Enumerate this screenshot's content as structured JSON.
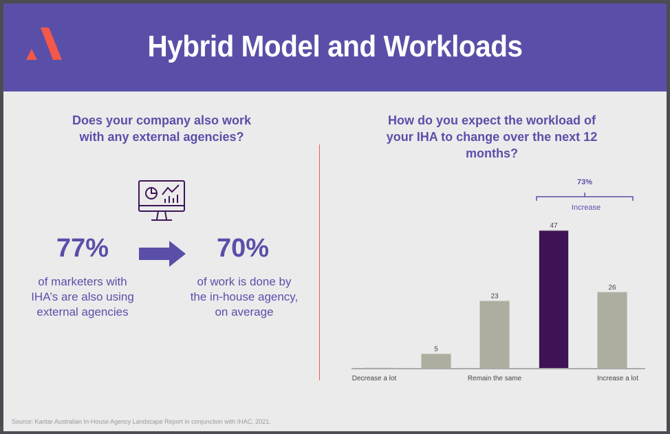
{
  "header": {
    "title": "Hybrid Model and Workloads"
  },
  "left": {
    "question": "Does your company also work with any external agencies?",
    "stat1": {
      "value": "77%",
      "desc": "of marketers with IHA’s are also using external agencies"
    },
    "stat2": {
      "value": "70%",
      "desc": "of work is done by the in-house agency, on average"
    }
  },
  "right": {
    "question": "How do you expect the workload of your IHA to change over the next 12 months?"
  },
  "chart_data": {
    "type": "bar",
    "title": "How do you expect the workload of your IHA to change over the next 12 months?",
    "categories": [
      "Decrease a lot",
      "",
      "Remain the same",
      "",
      "Increase a lot"
    ],
    "values": [
      0,
      5,
      23,
      47,
      26
    ],
    "value_labels": [
      "",
      "5",
      "23",
      "47",
      "26"
    ],
    "highlight_index": 3,
    "colors": {
      "default": "#adada0",
      "highlight": "#3e1356"
    },
    "annotation": {
      "value": "73%",
      "label": "Increase",
      "spans": [
        3,
        4
      ]
    },
    "ylim": [
      0,
      47
    ],
    "grid": false
  },
  "footer": {
    "source": "Source: Kantar Australian In-House Agency Landscape Report in conjunction with IHAC, 2021."
  }
}
